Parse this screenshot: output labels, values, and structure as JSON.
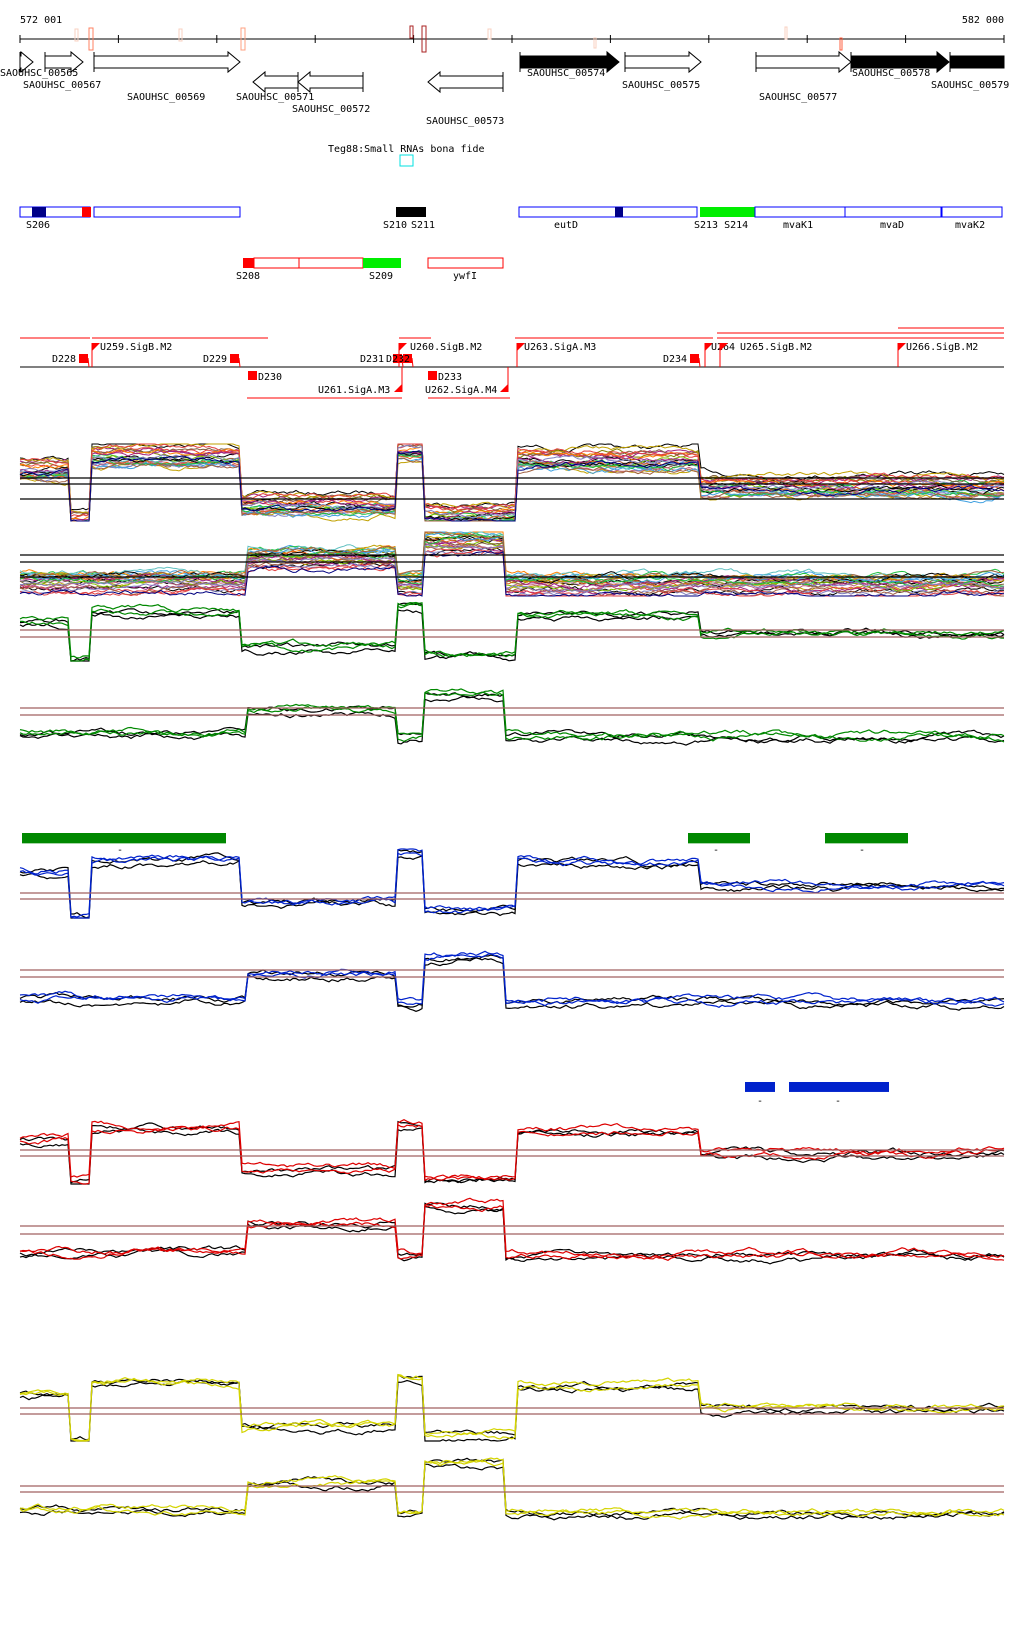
{
  "ruler": {
    "start_label": "572 001",
    "end_label": "582 000",
    "start": 572001,
    "end": 582000
  },
  "genes": [
    {
      "name": "SAOUHSC_00565",
      "strand": "+",
      "filled": false
    },
    {
      "name": "SAOUHSC_00567",
      "strand": "+",
      "filled": false
    },
    {
      "name": "SAOUHSC_00569",
      "strand": "+",
      "filled": false
    },
    {
      "name": "SAOUHSC_00571",
      "strand": "-",
      "filled": false
    },
    {
      "name": "SAOUHSC_00572",
      "strand": "-",
      "filled": false
    },
    {
      "name": "SAOUHSC_00573",
      "strand": "-",
      "filled": false
    },
    {
      "name": "SAOUHSC_00574",
      "strand": "+",
      "filled": true
    },
    {
      "name": "SAOUHSC_00575",
      "strand": "+",
      "filled": false
    },
    {
      "name": "SAOUHSC_00577",
      "strand": "+",
      "filled": false
    },
    {
      "name": "SAOUHSC_00578",
      "strand": "+",
      "filled": true
    },
    {
      "name": "SAOUHSC_00579",
      "strand": "+",
      "filled": true
    }
  ],
  "small_rna_track": {
    "label": "Teg88:Small RNAs bona fide"
  },
  "features_row1": [
    "S206",
    "S210",
    "S211",
    "eutD",
    "S213 S214",
    "mvaK1",
    "mvaD",
    "mvaK2"
  ],
  "features_row2": [
    "S208",
    "S209",
    "ywfI"
  ],
  "promoters": [
    "D228",
    "U259.SigB.M2",
    "D229",
    "D230",
    "U261.SigA.M3",
    "D231",
    "D232",
    "U260.SigB.M2",
    "D233",
    "U262.SigA.M4",
    "U263.SigA.M3",
    "D234",
    "U264",
    "U265.SigB.M2",
    "U266.SigB.M2"
  ],
  "expression_profiles": {
    "pattern_1": [
      [
        572001,
        572509,
        0.7
      ],
      [
        572509,
        572712,
        -0.1
      ],
      [
        572712,
        574237,
        0.9
      ],
      [
        574237,
        575842,
        0.15
      ],
      [
        575842,
        576096,
        1.0
      ],
      [
        576096,
        577031,
        0.0
      ],
      [
        577031,
        578911,
        0.85
      ],
      [
        578911,
        582000,
        0.45
      ]
    ],
    "pattern_2": [
      [
        572001,
        574288,
        0.15
      ],
      [
        574288,
        575842,
        0.6
      ],
      [
        575842,
        576096,
        0.1
      ],
      [
        576096,
        576930,
        0.9
      ],
      [
        576930,
        582000,
        0.1
      ]
    ]
  },
  "tracks": [
    {
      "pattern": "pattern_1",
      "style": "multi",
      "ref_color": "#000000"
    },
    {
      "pattern": "pattern_2",
      "style": "multi",
      "ref_color": "#000000"
    },
    {
      "pattern": "pattern_1",
      "color": "#008800",
      "ref_color": "#a06060"
    },
    {
      "pattern": "pattern_2",
      "color": "#008800",
      "ref_color": "#a06060"
    },
    {
      "pattern": "pattern_1",
      "color": "#0022cc",
      "ref_color": "#a06060"
    },
    {
      "pattern": "pattern_2",
      "color": "#0022cc",
      "ref_color": "#a06060"
    },
    {
      "pattern": "pattern_1",
      "color": "#dd0000",
      "ref_color": "#a06060"
    },
    {
      "pattern": "pattern_2",
      "color": "#dd0000",
      "ref_color": "#a06060"
    },
    {
      "pattern": "pattern_1",
      "color": "#d4d400",
      "ref_color": "#a06060"
    },
    {
      "pattern": "pattern_2",
      "color": "#d4d400",
      "ref_color": "#a06060"
    }
  ],
  "region_bars": [
    {
      "color": "#008800",
      "label": "-"
    },
    {
      "color": "#008800",
      "label": "-"
    },
    {
      "color": "#008800",
      "label": "-"
    },
    {
      "color": "#0022cc",
      "label": "-"
    },
    {
      "color": "#0022cc",
      "label": "-"
    }
  ],
  "colors": {
    "feature_outline_blue": "#0000ff",
    "feature_outline_red": "#ff0000",
    "feature_green": "#00ee00",
    "navy": "#000088",
    "small_rna": "#00e0e0"
  }
}
